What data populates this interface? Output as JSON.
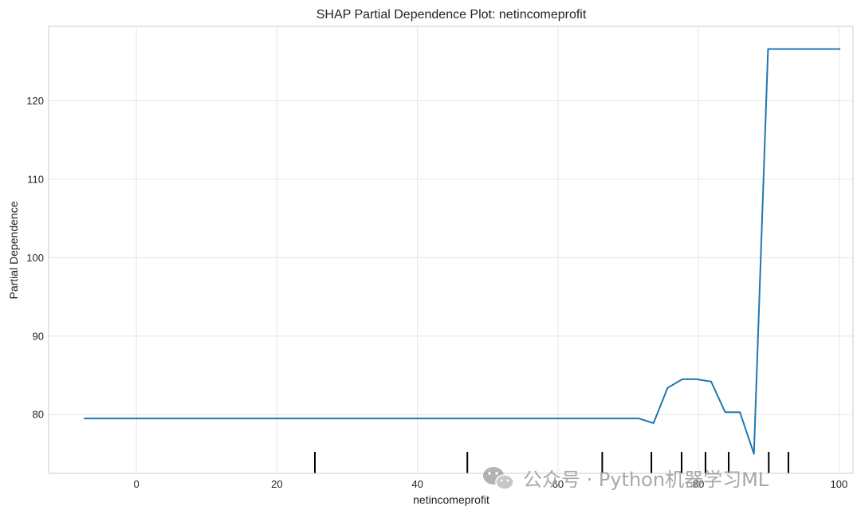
{
  "chart_data": {
    "type": "line",
    "title": "SHAP Partial Dependence Plot: netincomeprofit",
    "xlabel": "netincomeprofit",
    "ylabel": "Partial Dependence",
    "xlim": [
      -12.5,
      102
    ],
    "ylim": [
      72.5,
      129.5
    ],
    "xticks": [
      0,
      20,
      40,
      60,
      80,
      100
    ],
    "yticks": [
      80,
      90,
      100,
      110,
      120
    ],
    "grid": true,
    "line_color": "#1f77b4",
    "series": [
      {
        "x": [
          -7.5,
          71.5,
          73.6,
          75.6,
          77.7,
          79.7,
          81.8,
          83.8,
          85.9,
          87.9,
          89.9,
          92.0,
          94.0,
          96.1,
          98.1,
          100.2
        ],
        "y": [
          79.5,
          79.5,
          78.9,
          83.4,
          84.5,
          84.5,
          84.2,
          80.3,
          80.3,
          75.0,
          126.6,
          126.6,
          126.6,
          126.6,
          126.6,
          126.6
        ]
      }
    ],
    "rug_x": [
      25.4,
      47.1,
      66.3,
      73.3,
      77.6,
      81.0,
      84.3,
      90.0,
      92.8
    ]
  },
  "watermark": {
    "text": "公众号 · Python机器学习ML",
    "icon": "wechat-icon"
  }
}
